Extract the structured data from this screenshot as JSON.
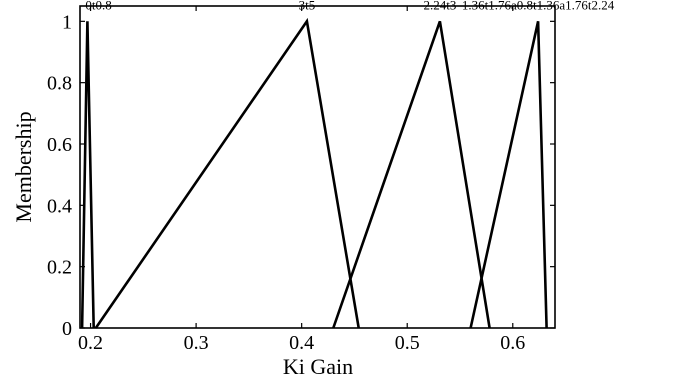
{
  "chart_data": {
    "type": "line",
    "title": "",
    "xlabel": "Ki Gain",
    "ylabel": "Membership",
    "xlim": [
      0.19,
      0.64
    ],
    "ylim": [
      0,
      1.05
    ],
    "xticks": [
      0.2,
      0.3,
      0.4,
      0.5,
      0.6
    ],
    "xtick_labels": [
      "0.2",
      "0.3",
      "0.4",
      "0.5",
      "0.6"
    ],
    "yticks": [
      0,
      0.2,
      0.4,
      0.6,
      0.8,
      1
    ],
    "ytick_labels": [
      "0",
      "0.2",
      "0.4",
      "0.6",
      "0.8",
      "1"
    ],
    "grid": false,
    "series": [
      {
        "name": "0t0.8",
        "x": [
          0.192,
          0.197,
          0.203
        ],
        "y": [
          0,
          1,
          0
        ]
      },
      {
        "name": "3t5",
        "x": [
          0.205,
          0.405,
          0.454
        ],
        "y": [
          0,
          1,
          0
        ]
      },
      {
        "name": "2.24t3",
        "x": [
          0.43,
          0.531,
          0.578
        ],
        "y": [
          0,
          1,
          0
        ]
      },
      {
        "name": "1.36t1.76a0.8t1.36a1.76t2.24",
        "x": [
          0.56,
          0.624,
          0.632
        ],
        "y": [
          0,
          1,
          0
        ]
      }
    ]
  }
}
